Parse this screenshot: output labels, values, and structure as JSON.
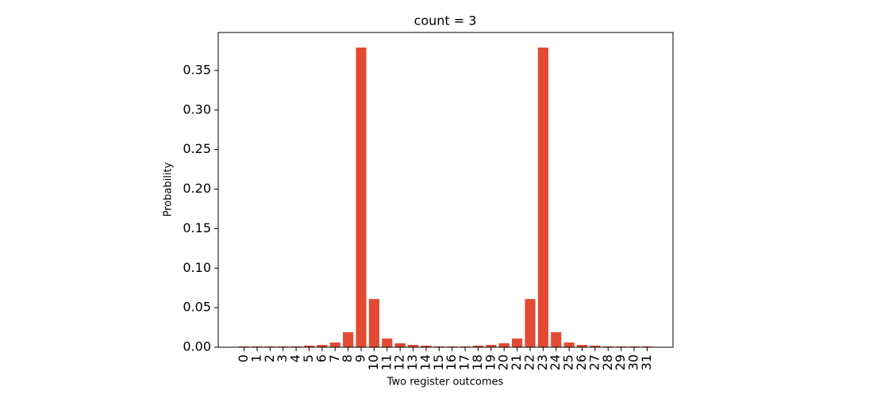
{
  "chart_data": {
    "type": "bar",
    "title": "count = 3",
    "x_label": "Two register outcomes",
    "y_label": "Probability",
    "categories": [
      "0",
      "1",
      "2",
      "3",
      "4",
      "5",
      "6",
      "7",
      "8",
      "9",
      "10",
      "11",
      "12",
      "13",
      "14",
      "15",
      "16",
      "17",
      "18",
      "19",
      "20",
      "21",
      "22",
      "23",
      "24",
      "25",
      "26",
      "27",
      "28",
      "29",
      "30",
      "31"
    ],
    "values": [
      0.001,
      0.001,
      0.001,
      0.001,
      0.001,
      0.002,
      0.003,
      0.006,
      0.019,
      0.379,
      0.061,
      0.011,
      0.005,
      0.003,
      0.002,
      0.001,
      0.001,
      0.001,
      0.002,
      0.003,
      0.005,
      0.011,
      0.061,
      0.379,
      0.019,
      0.006,
      0.003,
      0.002,
      0.001,
      0.001,
      0.001,
      0.001
    ],
    "color": "#e24a33",
    "ylim": [
      0,
      0.398
    ],
    "yticks": [
      {
        "value": 0,
        "label": "0.00"
      },
      {
        "value": 0.05,
        "label": "0.05"
      },
      {
        "value": 0.1,
        "label": "0.10"
      },
      {
        "value": 0.15,
        "label": "0.15"
      },
      {
        "value": 0.2,
        "label": "0.20"
      },
      {
        "value": 0.25,
        "label": "0.25"
      },
      {
        "value": 0.3,
        "label": "0.30"
      },
      {
        "value": 0.35,
        "label": "0.35"
      }
    ],
    "grid": false
  }
}
